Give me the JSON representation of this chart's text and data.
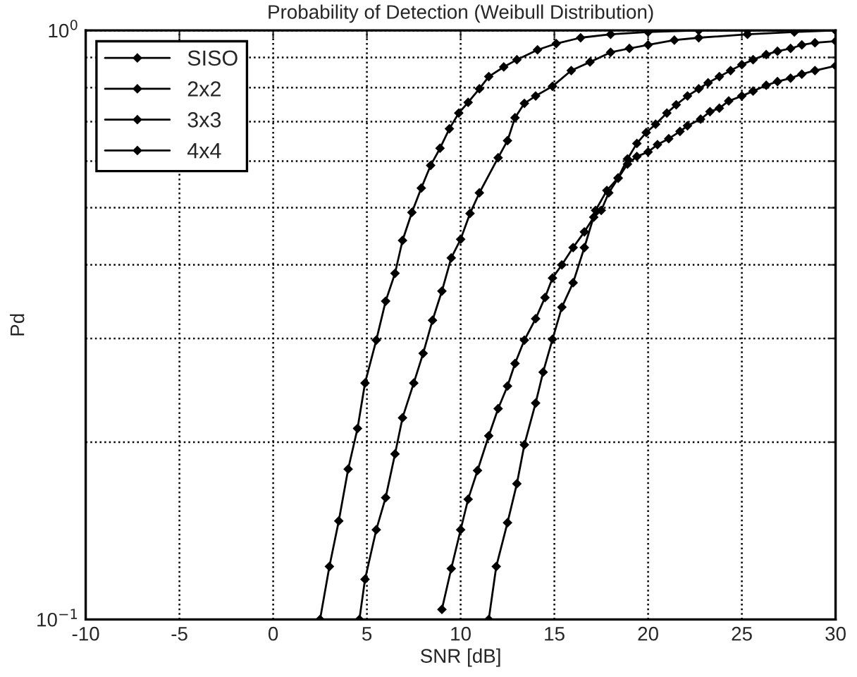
{
  "chart_data": {
    "type": "line",
    "title": "Probability of Detection (Weibull Distribution)",
    "xlabel": "SNR [dB]",
    "ylabel": "Pd",
    "log": "y",
    "xlim": [
      -10,
      30
    ],
    "ylim": [
      0.1,
      1
    ],
    "xticks": [
      -10,
      -5,
      0,
      5,
      10,
      15,
      20,
      25,
      30
    ],
    "yticks": [
      {
        "value": 0.1,
        "label": "10$^{−1}$"
      },
      {
        "value": 0.2,
        "label": null
      },
      {
        "value": 0.3,
        "label": null
      },
      {
        "value": 0.4,
        "label": null
      },
      {
        "value": 0.5,
        "label": null
      },
      {
        "value": 0.6,
        "label": null
      },
      {
        "value": 0.7,
        "label": null
      },
      {
        "value": 0.8,
        "label": null
      },
      {
        "value": 0.9,
        "label": null
      },
      {
        "value": 1,
        "label": "10$^{0}$"
      }
    ],
    "grid": true,
    "legend": "top left",
    "marker": "diamond",
    "line_style": "solid",
    "series": [
      {
        "name": "SISO",
        "color": "#000000",
        "x": [
          9.0,
          9.5,
          10.0,
          10.4,
          10.9,
          11.5,
          12.0,
          12.5,
          12.9,
          13.4,
          14.0,
          14.5,
          14.9,
          15.4,
          16.0,
          16.6,
          17.1,
          17.5,
          17.9,
          18.4,
          18.9,
          19.4,
          20.0,
          20.5,
          21.1,
          21.7,
          22.1,
          22.8,
          23.3,
          23.8,
          24.3,
          25.0,
          25.6,
          26.3,
          26.9,
          27.6,
          28.2,
          28.9,
          30.0
        ],
        "values": [
          0.104,
          0.122,
          0.142,
          0.16,
          0.179,
          0.205,
          0.228,
          0.249,
          0.272,
          0.298,
          0.324,
          0.352,
          0.38,
          0.4,
          0.428,
          0.455,
          0.482,
          0.495,
          0.53,
          0.561,
          0.593,
          0.611,
          0.622,
          0.64,
          0.655,
          0.674,
          0.689,
          0.707,
          0.728,
          0.738,
          0.759,
          0.774,
          0.789,
          0.807,
          0.819,
          0.83,
          0.843,
          0.855,
          0.871
        ]
      },
      {
        "name": "2x2",
        "color": "#000000",
        "x": [
          11.5,
          11.9,
          12.5,
          13.0,
          13.4,
          14.0,
          14.4,
          14.9,
          15.4,
          16.0,
          16.6,
          17.2,
          17.8,
          18.4,
          18.9,
          19.4,
          19.9,
          20.4,
          21.0,
          21.5,
          22.1,
          22.7,
          23.2,
          23.8,
          24.4,
          25.0,
          25.6,
          26.3,
          26.9,
          27.6,
          28.2,
          28.9,
          30.0
        ],
        "values": [
          0.1,
          0.123,
          0.146,
          0.17,
          0.198,
          0.233,
          0.263,
          0.299,
          0.339,
          0.373,
          0.428,
          0.495,
          0.535,
          0.562,
          0.605,
          0.643,
          0.671,
          0.693,
          0.724,
          0.748,
          0.774,
          0.796,
          0.815,
          0.835,
          0.855,
          0.875,
          0.892,
          0.91,
          0.922,
          0.932,
          0.945,
          0.953,
          0.959
        ]
      },
      {
        "name": "3x3",
        "color": "#000000",
        "x": [
          4.6,
          4.9,
          5.5,
          6.0,
          6.5,
          6.9,
          7.5,
          8.0,
          8.5,
          9.0,
          9.5,
          10.0,
          10.5,
          11.0,
          12.0,
          12.5,
          12.9,
          13.4,
          14.0,
          14.9,
          15.9,
          16.9,
          18.0,
          19.0,
          20.0,
          21.4,
          22.7,
          25.3,
          27.8,
          30.0
        ],
        "values": [
          0.1,
          0.117,
          0.142,
          0.161,
          0.191,
          0.22,
          0.252,
          0.283,
          0.322,
          0.361,
          0.411,
          0.442,
          0.489,
          0.53,
          0.608,
          0.65,
          0.711,
          0.752,
          0.774,
          0.804,
          0.855,
          0.884,
          0.918,
          0.932,
          0.945,
          0.963,
          0.972,
          0.985,
          0.994,
          1.0
        ]
      },
      {
        "name": "4x4",
        "color": "#000000",
        "x": [
          2.5,
          3.0,
          3.5,
          4.0,
          4.5,
          4.9,
          5.5,
          6.0,
          6.5,
          6.9,
          7.4,
          7.9,
          8.4,
          8.9,
          9.4,
          9.9,
          10.4,
          11.0,
          11.5,
          12.3,
          13.0,
          14.1,
          15.1,
          16.4,
          18.0,
          20.0,
          22.7,
          25.3,
          30.0
        ],
        "values": [
          0.1,
          0.123,
          0.147,
          0.18,
          0.211,
          0.252,
          0.298,
          0.347,
          0.387,
          0.44,
          0.491,
          0.54,
          0.59,
          0.631,
          0.681,
          0.724,
          0.755,
          0.796,
          0.835,
          0.867,
          0.892,
          0.927,
          0.95,
          0.972,
          0.985,
          0.994,
          1.0,
          1.0,
          1.0
        ]
      }
    ]
  }
}
